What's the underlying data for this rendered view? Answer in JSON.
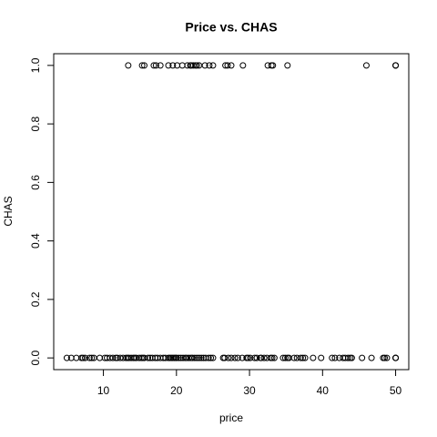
{
  "chart_data": {
    "type": "scatter",
    "title": "Price vs. CHAS",
    "xlabel": "price",
    "ylabel": "CHAS",
    "color": "#000000",
    "xlim": [
      3.2,
      51.8
    ],
    "ylim": [
      -0.04,
      1.04
    ],
    "xticks": [
      10,
      20,
      30,
      40,
      50
    ],
    "yticks": [
      {
        "value": 0,
        "label": "0.0"
      },
      {
        "value": 0.2,
        "label": "0.2"
      },
      {
        "value": 0.4,
        "label": "0.4"
      },
      {
        "value": 0.6,
        "label": "0.6"
      },
      {
        "value": 0.8,
        "label": "0.8"
      },
      {
        "value": 1,
        "label": "1.0"
      }
    ],
    "x": [
      13.4,
      15.3,
      15.6,
      16.9,
      17.2,
      17.8,
      18.9,
      19.5,
      20.1,
      20.8,
      21.5,
      21.9,
      22.0,
      22.3,
      22.6,
      22.8,
      23.1,
      23.9,
      24.5,
      25.0,
      26.7,
      27.0,
      27.5,
      29.1,
      32.5,
      33.0,
      33.2,
      35.2,
      46.0,
      50,
      50,
      50,
      5.0,
      5.6,
      6.3,
      7.0,
      7.2,
      7.5,
      8.1,
      8.4,
      8.7,
      9.5,
      10.2,
      10.5,
      10.9,
      11.3,
      11.7,
      11.9,
      12.3,
      12.7,
      13.1,
      13.3,
      13.5,
      13.8,
      14.1,
      14.3,
      14.5,
      14.9,
      15.2,
      15.4,
      15.6,
      16.1,
      16.4,
      16.7,
      17.1,
      17.4,
      17.8,
      18.2,
      18.5,
      18.9,
      19.1,
      19.3,
      19.5,
      19.7,
      19.9,
      20.0,
      20.3,
      20.6,
      20.9,
      21.2,
      21.4,
      21.7,
      22.0,
      22.2,
      22.5,
      22.8,
      23.1,
      23.4,
      23.7,
      24.0,
      24.4,
      24.7,
      25.0,
      26.4,
      26.6,
      27.1,
      27.5,
      28.0,
      28.4,
      29.0,
      29.6,
      29.8,
      30.1,
      30.7,
      31.0,
      31.5,
      31.6,
      32.0,
      32.4,
      32.9,
      33.1,
      33.4,
      34.6,
      34.9,
      35.2,
      35.4,
      36.1,
      36.5,
      37.0,
      37.3,
      37.6,
      38.7,
      39.8,
      41.3,
      41.7,
      42.3,
      42.8,
      43.1,
      43.5,
      43.8,
      44.0,
      45.4,
      46.7,
      48.3,
      48.5,
      48.8,
      50.0,
      50.0,
      50.0
    ],
    "values": [
      1,
      1,
      1,
      1,
      1,
      1,
      1,
      1,
      1,
      1,
      1,
      1,
      1,
      1,
      1,
      1,
      1,
      1,
      1,
      1,
      1,
      1,
      1,
      1,
      1,
      1,
      1,
      1,
      1,
      1,
      1,
      1,
      0,
      0,
      0,
      0,
      0,
      0,
      0,
      0,
      0,
      0,
      0,
      0,
      0,
      0,
      0,
      0,
      0,
      0,
      0,
      0,
      0,
      0,
      0,
      0,
      0,
      0,
      0,
      0,
      0,
      0,
      0,
      0,
      0,
      0,
      0,
      0,
      0,
      0,
      0,
      0,
      0,
      0,
      0,
      0,
      0,
      0,
      0,
      0,
      0,
      0,
      0,
      0,
      0,
      0,
      0,
      0,
      0,
      0,
      0,
      0,
      0,
      0,
      0,
      0,
      0,
      0,
      0,
      0,
      0,
      0,
      0,
      0,
      0,
      0,
      0,
      0,
      0,
      0,
      0,
      0,
      0,
      0,
      0,
      0,
      0,
      0,
      0,
      0,
      0,
      0,
      0,
      0,
      0,
      0,
      0,
      0,
      0,
      0,
      0,
      0,
      0,
      0,
      0,
      0,
      0,
      0,
      0
    ]
  }
}
